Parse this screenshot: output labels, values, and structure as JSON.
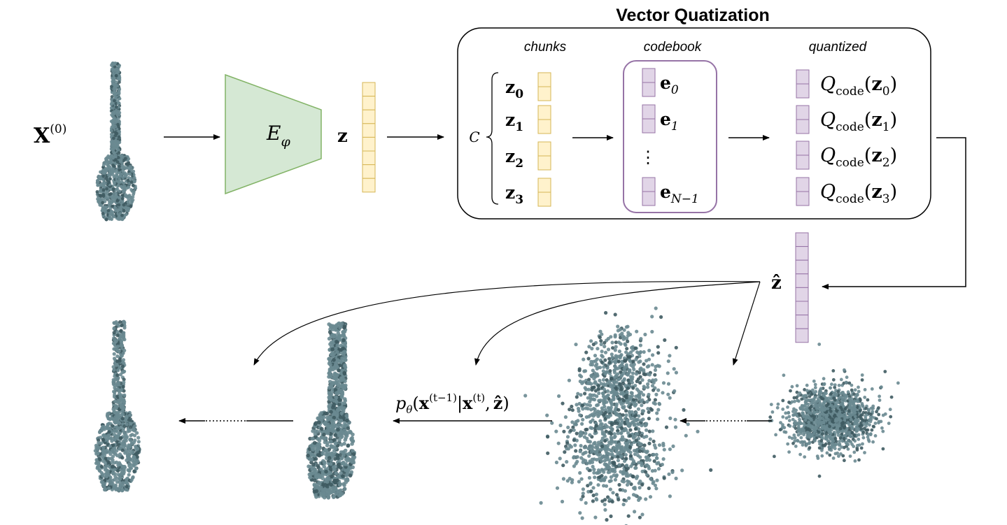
{
  "title": "Vector Quatization",
  "headers": {
    "chunks": "chunks",
    "codebook": "codebook",
    "quantized": "quantized"
  },
  "labels": {
    "input": "X",
    "input_sup": "(0)",
    "encoder": "E",
    "encoder_sub": "φ",
    "latent": "z",
    "quantized_latent": "ẑ",
    "chunk_count": "C",
    "codebook_ellipsis": "⋮"
  },
  "chunks": [
    {
      "base": "z",
      "sub": "0"
    },
    {
      "base": "z",
      "sub": "1"
    },
    {
      "base": "z",
      "sub": "2"
    },
    {
      "base": "z",
      "sub": "3"
    }
  ],
  "codebook": [
    {
      "base": "e",
      "sub": "0"
    },
    {
      "base": "e",
      "sub": "1"
    },
    {
      "base": "e",
      "sub": "N−1"
    }
  ],
  "quantized": [
    {
      "fn": "Q",
      "fn_sub": "code",
      "open": "(",
      "arg": "z",
      "arg_sub": "0",
      "close": ")"
    },
    {
      "fn": "Q",
      "fn_sub": "code",
      "open": "(",
      "arg": "z",
      "arg_sub": "1",
      "close": ")"
    },
    {
      "fn": "Q",
      "fn_sub": "code",
      "open": "(",
      "arg": "z",
      "arg_sub": "2",
      "close": ")"
    },
    {
      "fn": "Q",
      "fn_sub": "code",
      "open": "(",
      "arg": "z",
      "arg_sub": "3",
      "close": ")"
    }
  ],
  "denoise": {
    "p": "p",
    "p_sub": "θ",
    "open": "(",
    "x1": "x",
    "x1_sup": "(t−1)",
    "bar": "|",
    "x2": "x",
    "x2_sup": "(t)",
    "comma": ",",
    "zhat": "ẑ",
    "close": ")"
  },
  "colors": {
    "encoder_fill": "#d5e8d4",
    "encoder_stroke": "#82b366",
    "chunk_fill": "#fff2cc",
    "chunk_stroke": "#d6b656",
    "code_fill": "#e1d5e7",
    "code_stroke": "#9673a6",
    "point": "#6a8a91",
    "point_dark": "#3f5b62"
  },
  "icons": {
    "input_shape": "guitar-point-cloud-icon",
    "noise_shape": "gaussian-noise-point-cloud-icon"
  }
}
